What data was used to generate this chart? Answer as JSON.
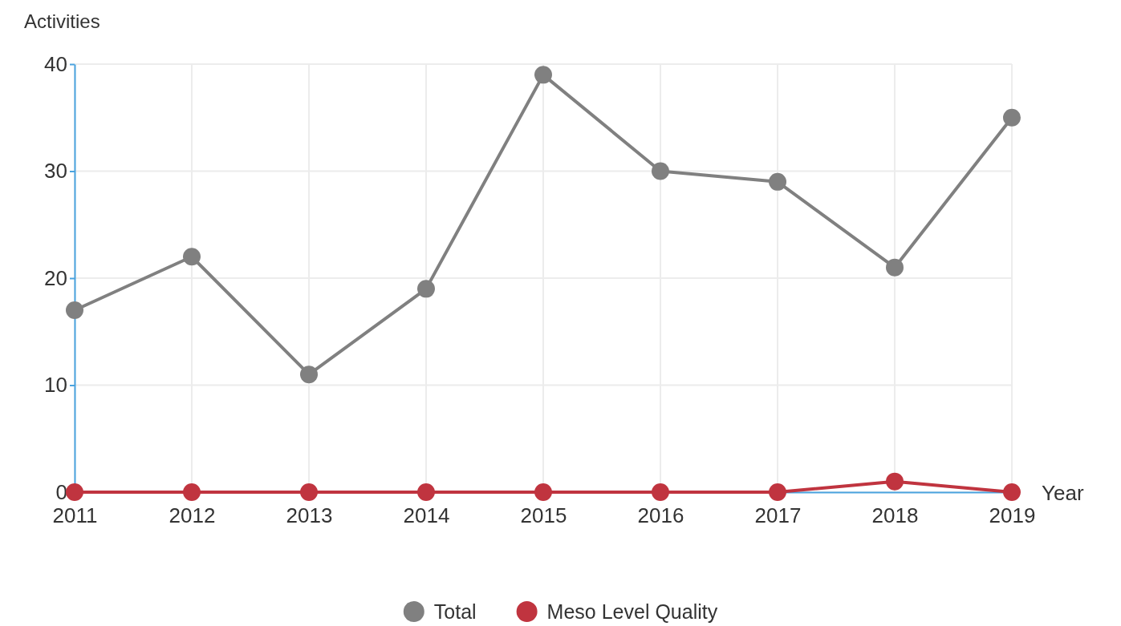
{
  "chart_data": {
    "type": "line",
    "xlabel": "Year",
    "ylabel": "Activities",
    "categories": [
      "2011",
      "2012",
      "2013",
      "2014",
      "2015",
      "2016",
      "2017",
      "2018",
      "2019"
    ],
    "series": [
      {
        "name": "Total",
        "color": "#808080",
        "values": [
          17,
          22,
          11,
          19,
          39,
          30,
          29,
          21,
          35
        ]
      },
      {
        "name": "Meso Level Quality",
        "color": "#c0343f",
        "values": [
          0,
          0,
          0,
          0,
          0,
          0,
          0,
          1,
          0
        ]
      }
    ],
    "ylim": [
      0,
      40
    ],
    "yticks": [
      0,
      10,
      20,
      30,
      40
    ],
    "grid": true,
    "legend": "bottom",
    "marker": "circle",
    "line_style": "solid"
  }
}
